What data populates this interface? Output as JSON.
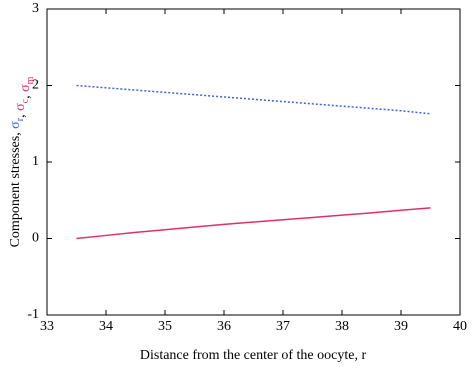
{
  "chart_data": {
    "type": "line",
    "xlabel": "Distance from the center of the oocyte, r",
    "ylabel_parts": [
      {
        "text": "Component stresses, ",
        "color": "#000000"
      },
      {
        "text": "σ",
        "sub": "r",
        "color": "#3a64d8"
      },
      {
        "text": ", ",
        "color": "#000000"
      },
      {
        "text": "σ",
        "sub": "c",
        "color": "#e0306a"
      },
      {
        "text": ", ",
        "color": "#000000"
      },
      {
        "text": "σ",
        "sub": "m",
        "color": "#e0306a"
      }
    ],
    "x": [
      33.5,
      34,
      34.5,
      35,
      35.5,
      36,
      36.5,
      37,
      37.5,
      38,
      38.5,
      39,
      39.5
    ],
    "series": [
      {
        "color": "#3a64d8",
        "dash": "dotted",
        "values": [
          2.0,
          1.97,
          1.94,
          1.91,
          1.88,
          1.85,
          1.82,
          1.79,
          1.76,
          1.73,
          1.7,
          1.67,
          1.63
        ]
      },
      {
        "color": "#e0306a",
        "dash": "solid",
        "values": [
          0,
          0.04,
          0.08,
          0.115,
          0.15,
          0.185,
          0.215,
          0.245,
          0.275,
          0.305,
          0.335,
          0.37,
          0.4
        ]
      }
    ],
    "xlim": [
      33,
      40
    ],
    "xticks": [
      33,
      34,
      35,
      36,
      37,
      38,
      39,
      40
    ],
    "ylim": [
      -1,
      3
    ],
    "yticks": [
      -1,
      0,
      1,
      2,
      3
    ],
    "grid": false
  }
}
